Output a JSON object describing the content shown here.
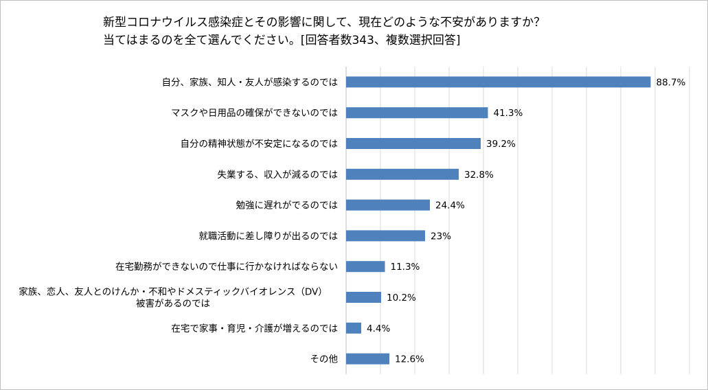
{
  "chart_data": {
    "type": "bar",
    "orientation": "horizontal",
    "title_lines": [
      "新型コロナウイルス感染症とその影響に関して、現在どのような不安がありますか？",
      "当てはまるのを全て選んでください。[回答者数343、複数選択回答]"
    ],
    "categories": [
      [
        "自分、家族、知人・友人が感染するのでは"
      ],
      [
        "マスクや日用品の確保ができないのでは"
      ],
      [
        "自分の精神状態が不安定になるのでは"
      ],
      [
        "失業する、収入が減るのでは"
      ],
      [
        "勉強に遅れがでるのでは"
      ],
      [
        "就職活動に差し障りが出るのでは"
      ],
      [
        "在宅勤務ができないので仕事に行かなければならない"
      ],
      [
        "家族、恋人、友人とのけんか・不和やドメスティックバイオレンス（DV）",
        "被害があるのでは"
      ],
      [
        "在宅で家事・育児・介護が増えるのでは"
      ],
      [
        "その他"
      ]
    ],
    "values": [
      88.7,
      41.3,
      39.2,
      32.8,
      24.4,
      23,
      11.3,
      10.2,
      4.4,
      12.6
    ],
    "value_labels": [
      "88.7%",
      "41.3%",
      "39.2%",
      "32.8%",
      "24.4%",
      "23%",
      "11.3%",
      "10.2%",
      "4.4%",
      "12.6%"
    ],
    "xlim": [
      0,
      100
    ],
    "grid": true,
    "bar_color": "#4f81bd",
    "grid_color": "#d9d9d9"
  }
}
